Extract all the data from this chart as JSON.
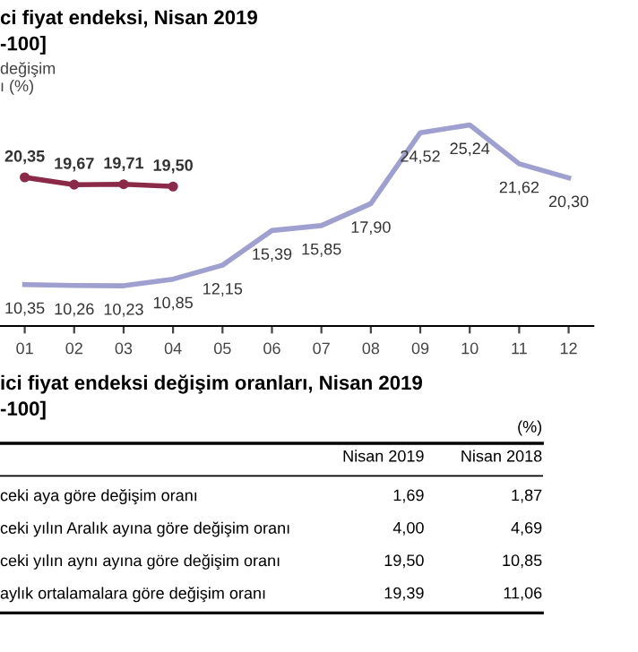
{
  "chart_data": {
    "type": "line",
    "title": "ci fiyat endeksi, Nisan 2019",
    "subtitle": "-100]",
    "ylabel": "değişim\nı (%)",
    "categories": [
      "01",
      "02",
      "03",
      "04",
      "05",
      "06",
      "07",
      "08",
      "09",
      "10",
      "11",
      "12"
    ],
    "series": [
      {
        "color": "#9f9fd0",
        "marker": "none",
        "values": [
          10.35,
          10.26,
          10.23,
          10.85,
          12.15,
          15.39,
          15.85,
          17.9,
          24.52,
          25.24,
          21.62,
          20.3
        ],
        "value_labels": [
          "10,35",
          "10,26",
          "10,23",
          "10,85",
          "12,15",
          "15,39",
          "15,85",
          "17,90",
          "24,52",
          "25,24",
          "21,62",
          "20,30"
        ]
      },
      {
        "color": "#8b2a48",
        "marker": "circle",
        "values": [
          20.35,
          19.67,
          19.71,
          19.5,
          null,
          null,
          null,
          null,
          null,
          null,
          null,
          null
        ],
        "value_labels": [
          "20,35",
          "19,67",
          "19,71",
          "19,50",
          null,
          null,
          null,
          null,
          null,
          null,
          null,
          null
        ]
      }
    ],
    "tick_labels": "x",
    "grid": false,
    "legend": false,
    "annotations": [
      "ici fiyat endeksi değişim oranları, Nisan 2019",
      "-100]",
      "(%)",
      "Nisan 2019",
      "Nisan 2018",
      "ceki aya göre değişim oranı",
      "1,69",
      "1,87",
      "ceki yılın Aralık ayına göre değişim oranı",
      "4,00",
      "4,69",
      "ceki yılın aynı ayına göre değişim oranı",
      "19,50",
      "10,85",
      "aylık ortalamalara göre değişim oranı",
      "19,39",
      "11,06"
    ]
  }
}
